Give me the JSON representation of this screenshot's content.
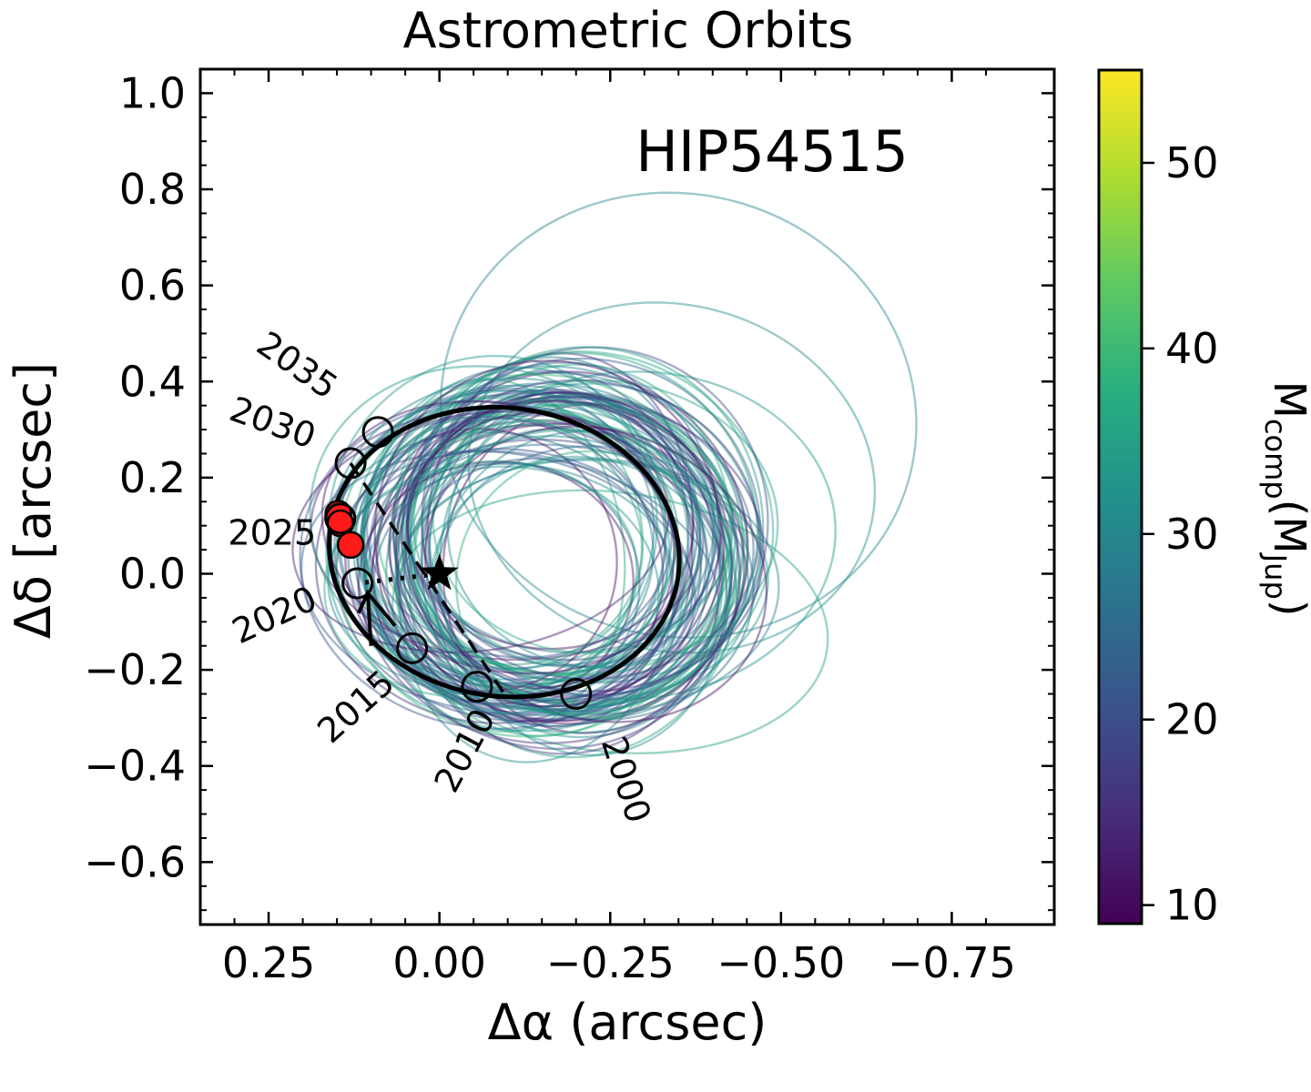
{
  "chart_data": {
    "type": "scatter",
    "title": "Astrometric Orbits",
    "annotation": "HIP54515",
    "xlabel": "Δα (arcsec)",
    "ylabel": "Δδ [arcsec]",
    "xlim": [
      0.35,
      -0.9
    ],
    "ylim": [
      -0.73,
      1.05
    ],
    "xticks": [
      {
        "value": 0.25,
        "label": "0.25"
      },
      {
        "value": 0.0,
        "label": "0.00"
      },
      {
        "value": -0.25,
        "label": "−0.25"
      },
      {
        "value": -0.5,
        "label": "−0.50"
      },
      {
        "value": -0.75,
        "label": "−0.75"
      }
    ],
    "yticks": [
      {
        "value": 1.0,
        "label": "1.0"
      },
      {
        "value": 0.8,
        "label": "0.8"
      },
      {
        "value": 0.6,
        "label": "0.6"
      },
      {
        "value": 0.4,
        "label": "0.4"
      },
      {
        "value": 0.2,
        "label": "0.2"
      },
      {
        "value": 0.0,
        "label": "0.0"
      },
      {
        "value": -0.2,
        "label": "−0.2"
      },
      {
        "value": -0.4,
        "label": "−0.4"
      },
      {
        "value": -0.6,
        "label": "−0.6"
      }
    ],
    "colorbar": {
      "label_main": "M",
      "label_sub1": "comp",
      "label_mid": "(M",
      "label_sub2": "Jup",
      "label_end": ")",
      "range": [
        9,
        55
      ],
      "colormap": "viridis",
      "ticks": [
        {
          "value": 10,
          "label": "10"
        },
        {
          "value": 20,
          "label": "20"
        },
        {
          "value": 30,
          "label": "30"
        },
        {
          "value": 40,
          "label": "40"
        },
        {
          "value": 50,
          "label": "50"
        }
      ]
    },
    "host_star": {
      "x": 0.0,
      "y": 0.0,
      "marker": "star"
    },
    "best_orbit": {
      "center_x": -0.095,
      "center_y": 0.045,
      "semi_axis_a": 0.257,
      "semi_axis_b": 0.3,
      "rotation_deg": 8,
      "color": "#000000"
    },
    "epochs": [
      {
        "year": "2000",
        "x": -0.2,
        "y": -0.25,
        "label_x": -0.27,
        "label_y": -0.43,
        "label_rot": 72
      },
      {
        "year": "2010",
        "x": -0.055,
        "y": -0.235,
        "label_x": -0.04,
        "label_y": -0.37,
        "label_rot": -62
      },
      {
        "year": "2015",
        "x": 0.04,
        "y": -0.155,
        "label_x": 0.12,
        "label_y": -0.28,
        "label_rot": -42
      },
      {
        "year": "2020",
        "x": 0.12,
        "y": -0.02,
        "label_x": 0.24,
        "label_y": -0.09,
        "label_rot": -25
      },
      {
        "year": "2025",
        "x": 0.145,
        "y": 0.115,
        "label_x": 0.245,
        "label_y": 0.08,
        "label_rot": 0
      },
      {
        "year": "2030",
        "x": 0.13,
        "y": 0.23,
        "label_x": 0.245,
        "label_y": 0.31,
        "label_rot": 20
      },
      {
        "year": "2035",
        "x": 0.09,
        "y": 0.295,
        "label_x": 0.21,
        "label_y": 0.43,
        "label_rot": 35
      }
    ],
    "observed_points": [
      {
        "x": 0.148,
        "y": 0.125
      },
      {
        "x": 0.145,
        "y": 0.105
      },
      {
        "x": 0.13,
        "y": 0.06
      }
    ],
    "line_of_nodes": {
      "x1": 0.13,
      "y1": 0.23,
      "x2": -0.095,
      "y2": -0.25
    },
    "periastron_line": {
      "x1": 0.0,
      "y1": 0.0,
      "x2": 0.12,
      "y2": -0.02
    },
    "motion_arrow": {
      "x1": 0.1,
      "y1": -0.15,
      "x2": 0.105,
      "y2": -0.04
    },
    "sampled_orbits": {
      "count": 100,
      "note_fields": [
        "center_x",
        "center_y",
        "semi_axis_a",
        "semi_axis_b",
        "mass"
      ],
      "notable": [
        {
          "center_x": -0.35,
          "center_y": 0.33,
          "semi_axis_a": 0.35,
          "semi_axis_b": 0.46,
          "mass": 30
        },
        {
          "center_x": -0.34,
          "center_y": 0.2,
          "semi_axis_a": 0.3,
          "semi_axis_b": 0.36,
          "mass": 31
        },
        {
          "center_x": -0.28,
          "center_y": 0.08,
          "semi_axis_a": 0.3,
          "semi_axis_b": 0.34,
          "mass": 33
        },
        {
          "center_x": -0.25,
          "center_y": -0.1,
          "semi_axis_a": 0.32,
          "semi_axis_b": 0.27,
          "mass": 35
        }
      ]
    }
  }
}
